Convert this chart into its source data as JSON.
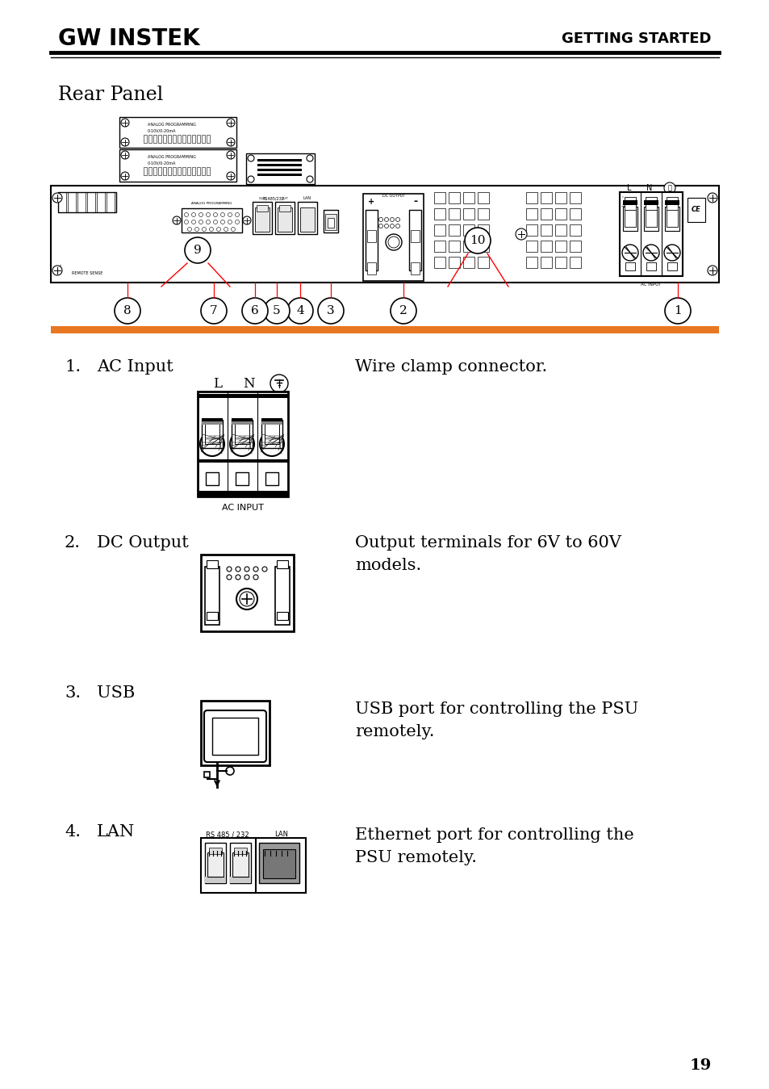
{
  "bg_color": "#ffffff",
  "text_color": "#000000",
  "orange_line_color": "#e87722",
  "logo_text": "GW INSTEK",
  "header_right": "GETTING STARTED",
  "section_title": "Rear Panel",
  "page_number": "19"
}
